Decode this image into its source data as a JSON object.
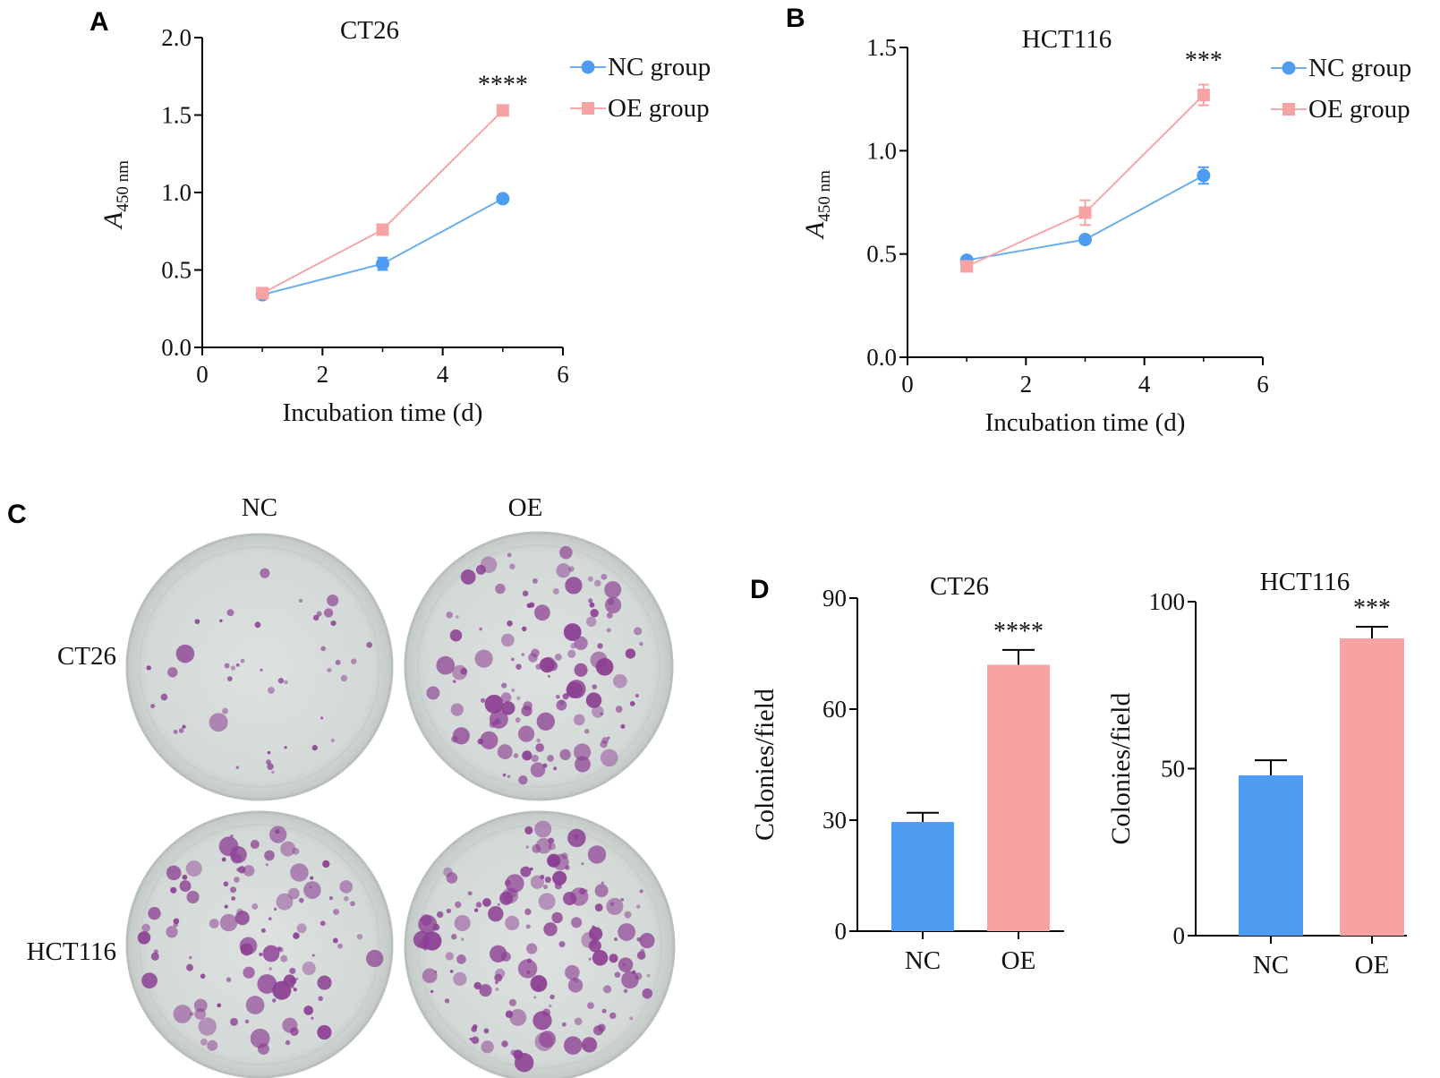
{
  "panel_letters": [
    "A",
    "B",
    "C",
    "D"
  ],
  "colors": {
    "nc": "#4e9cf2",
    "oe": "#f7a3a3",
    "nc_line": "#6aaef0",
    "oe_line": "#f3a8a8",
    "dish_bg": "#d7dcda",
    "colony": "#8c3f93"
  },
  "panel_c": {
    "columns": [
      "NC",
      "OE"
    ],
    "rows": [
      "CT26",
      "HCT116"
    ]
  },
  "chart_data": [
    {
      "id": "A",
      "type": "line",
      "title": "CT26",
      "xlabel": "Incubation time (d)",
      "ylabel_main": "A",
      "ylabel_sub": "450 nm",
      "xlim": [
        0,
        6
      ],
      "ylim": [
        0,
        2.0
      ],
      "xticks": [
        "0",
        "2",
        "4",
        "6"
      ],
      "yticks": [
        "0.0",
        "0.5",
        "1.0",
        "1.5",
        "2.0"
      ],
      "x": [
        1,
        3,
        5
      ],
      "series": [
        {
          "name": "NC group",
          "values": [
            0.34,
            0.54,
            0.96
          ],
          "errors": [
            0.02,
            0.04,
            0.01
          ],
          "marker": "circle"
        },
        {
          "name": "OE group",
          "values": [
            0.35,
            0.76,
            1.53
          ],
          "errors": [
            0.01,
            0.02,
            0.01
          ],
          "marker": "square"
        }
      ],
      "annotation": {
        "text": "****",
        "x": 5
      },
      "legend": "top-right"
    },
    {
      "id": "B",
      "type": "line",
      "title": "HCT116",
      "xlabel": "Incubation time (d)",
      "ylabel_main": "A",
      "ylabel_sub": "450 nm",
      "xlim": [
        0,
        6
      ],
      "ylim": [
        0,
        1.5
      ],
      "xticks": [
        "0",
        "2",
        "4",
        "6"
      ],
      "yticks": [
        "0.0",
        "0.5",
        "1.0",
        "1.5"
      ],
      "x": [
        1,
        3,
        5
      ],
      "series": [
        {
          "name": "NC group",
          "values": [
            0.47,
            0.57,
            0.88
          ],
          "errors": [
            0.01,
            0.01,
            0.04
          ],
          "marker": "circle"
        },
        {
          "name": "OE group",
          "values": [
            0.44,
            0.7,
            1.27
          ],
          "errors": [
            0.01,
            0.06,
            0.05
          ],
          "marker": "square"
        }
      ],
      "annotation": {
        "text": "***",
        "x": 5
      },
      "legend": "top-right"
    },
    {
      "id": "D1",
      "type": "bar",
      "title": "CT26",
      "ylabel": "Colonies/field",
      "ylim": [
        0,
        90
      ],
      "yticks": [
        "0",
        "30",
        "60",
        "90"
      ],
      "categories": [
        "NC",
        "OE"
      ],
      "values": [
        29.5,
        72
      ],
      "errors": [
        2.5,
        4
      ],
      "annotation": {
        "text": "****",
        "category": "OE"
      }
    },
    {
      "id": "D2",
      "type": "bar",
      "title": "HCT116",
      "ylabel": "Colonies/field",
      "ylim": [
        0,
        100
      ],
      "yticks": [
        "0",
        "50",
        "100"
      ],
      "categories": [
        "NC",
        "OE"
      ],
      "values": [
        48,
        89
      ],
      "errors": [
        4.5,
        3.5
      ],
      "annotation": {
        "text": "***",
        "category": "OE"
      }
    }
  ]
}
